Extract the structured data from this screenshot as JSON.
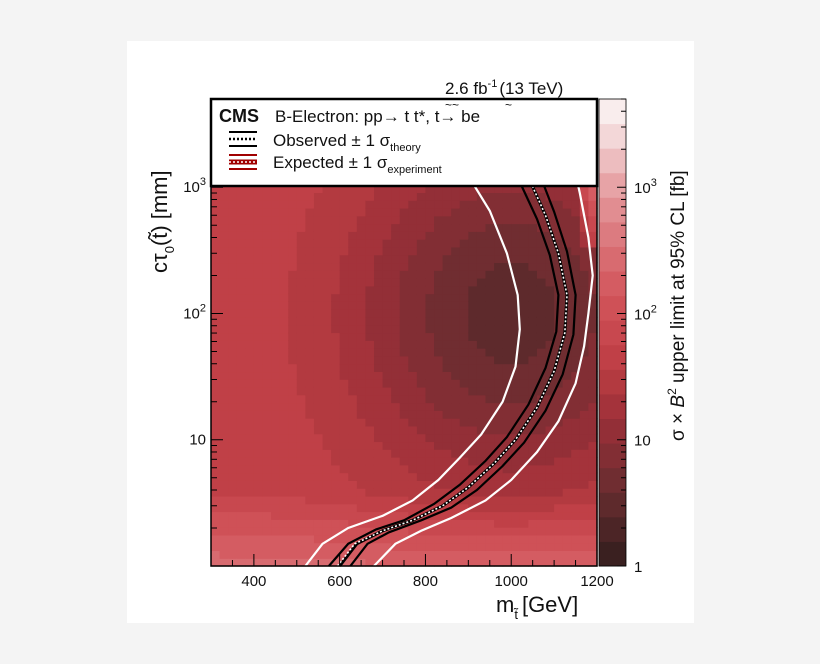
{
  "chart_data": {
    "type": "heatmap",
    "header": "2.6 fb-1 (13 TeV)",
    "lumi_value": "2.6 fb",
    "lumi_sup": "-1",
    "lumi_energy": "(13 TeV)",
    "cms": "CMS",
    "process": "B-Electron: pp→ t̃ t̃*, t̃→ be",
    "process_pre": "B-Electron: pp→ ",
    "process_mid": "t t*, ",
    "process_post": "t→ be",
    "legend": [
      {
        "label": "Observed ± 1 σ",
        "sub": "theory",
        "color": "#000000",
        "band_color": "#ffffff"
      },
      {
        "label": "Expected ± 1 σ",
        "sub": "experiment",
        "color": "#a00000",
        "band_color": "#ffffff"
      }
    ],
    "xlabel": "m",
    "xlabel_sub": "t̃",
    "xlabel_unit": "[GeV]",
    "ylabel_pre": "cτ",
    "ylabel_sub": "0",
    "ylabel_arg": "(t̃)",
    "ylabel_unit": "[mm]",
    "zlabel": "σ × B² upper limit at 95% CL [fb]",
    "zlabel_pre": "σ × ",
    "zlabel_B": "B",
    "zlabel_sup": "2",
    "zlabel_post": " upper limit at 95% CL [fb]",
    "xlim": [
      300,
      1200
    ],
    "ylim": [
      1,
      5000
    ],
    "zlim": [
      1,
      5000
    ],
    "y_log": true,
    "z_log": true,
    "x_ticks": [
      {
        "value": 400,
        "label": "400"
      },
      {
        "value": 600,
        "label": "600"
      },
      {
        "value": 800,
        "label": "800"
      },
      {
        "value": 1000,
        "label": "1000"
      },
      {
        "value": 1200,
        "label": "1200"
      }
    ],
    "y_ticks": [
      {
        "value": 10,
        "label": "10"
      },
      {
        "value": 100,
        "label": "10",
        "sup": "2"
      },
      {
        "value": 1000,
        "label": "10",
        "sup": "3"
      }
    ],
    "z_ticks": [
      {
        "value": 1,
        "label": "1"
      },
      {
        "value": 10,
        "label": "10"
      },
      {
        "value": 100,
        "label": "10",
        "sup": "2"
      },
      {
        "value": 1000,
        "label": "10",
        "sup": "3"
      }
    ],
    "z_colors": [
      "#3a2020",
      "#4c2526",
      "#5e2a2c",
      "#702d31",
      "#822e34",
      "#932f37",
      "#a4333b",
      "#b33a40",
      "#c04047",
      "#c8484f",
      "#cf5157",
      "#d45c62",
      "#d86b70",
      "#dc7b80",
      "#e18d91",
      "#e7a3a6",
      "#edbdbf",
      "#f3d7d8",
      "#f9eded"
    ],
    "observed": {
      "central": [
        [
          600,
          1
        ],
        [
          640,
          1.5
        ],
        [
          700,
          1.9
        ],
        [
          770,
          2.3
        ],
        [
          840,
          3.0
        ],
        [
          900,
          4.2
        ],
        [
          960,
          6.5
        ],
        [
          1010,
          10
        ],
        [
          1060,
          18
        ],
        [
          1100,
          35
        ],
        [
          1125,
          70
        ],
        [
          1130,
          140
        ],
        [
          1110,
          300
        ],
        [
          1080,
          600
        ],
        [
          1040,
          1200
        ],
        [
          1010,
          1800
        ]
      ],
      "minus": [
        [
          575,
          1
        ],
        [
          620,
          1.5
        ],
        [
          685,
          1.95
        ],
        [
          750,
          2.3
        ],
        [
          820,
          3.1
        ],
        [
          880,
          4.4
        ],
        [
          940,
          6.8
        ],
        [
          990,
          10.5
        ],
        [
          1040,
          19
        ],
        [
          1080,
          37
        ],
        [
          1105,
          72
        ],
        [
          1110,
          140
        ],
        [
          1090,
          290
        ],
        [
          1060,
          560
        ],
        [
          1020,
          1100
        ],
        [
          990,
          1800
        ]
      ],
      "plus": [
        [
          625,
          1
        ],
        [
          665,
          1.5
        ],
        [
          715,
          1.85
        ],
        [
          790,
          2.3
        ],
        [
          860,
          2.9
        ],
        [
          920,
          4.0
        ],
        [
          980,
          6.2
        ],
        [
          1030,
          9.5
        ],
        [
          1080,
          17
        ],
        [
          1120,
          33
        ],
        [
          1145,
          68
        ],
        [
          1150,
          140
        ],
        [
          1130,
          310
        ],
        [
          1100,
          640
        ],
        [
          1065,
          1300
        ],
        [
          1035,
          1800
        ]
      ]
    },
    "expected": {
      "central": [
        [
          595,
          1
        ],
        [
          635,
          1.5
        ],
        [
          700,
          1.9
        ],
        [
          770,
          2.3
        ],
        [
          840,
          3.0
        ],
        [
          900,
          4.2
        ],
        [
          960,
          6.5
        ],
        [
          1010,
          10
        ],
        [
          1060,
          18
        ],
        [
          1100,
          35
        ],
        [
          1125,
          70
        ],
        [
          1130,
          140
        ],
        [
          1110,
          300
        ],
        [
          1080,
          600
        ],
        [
          1040,
          1200
        ],
        [
          1005,
          1800
        ]
      ],
      "minus": [
        [
          520,
          1
        ],
        [
          560,
          1.5
        ],
        [
          620,
          2.0
        ],
        [
          700,
          2.5
        ],
        [
          770,
          3.3
        ],
        [
          830,
          4.8
        ],
        [
          880,
          7.2
        ],
        [
          930,
          11
        ],
        [
          980,
          20
        ],
        [
          1010,
          38
        ],
        [
          1020,
          75
        ],
        [
          1015,
          140
        ],
        [
          990,
          300
        ],
        [
          950,
          650
        ],
        [
          890,
          1400
        ],
        [
          840,
          1800
        ]
      ],
      "plus": [
        [
          680,
          1
        ],
        [
          730,
          1.5
        ],
        [
          790,
          1.9
        ],
        [
          860,
          2.4
        ],
        [
          940,
          3.3
        ],
        [
          1000,
          4.8
        ],
        [
          1060,
          8
        ],
        [
          1110,
          14
        ],
        [
          1150,
          28
        ],
        [
          1170,
          55
        ],
        [
          1180,
          100
        ],
        [
          1190,
          200
        ],
        [
          1180,
          400
        ],
        [
          1160,
          900
        ],
        [
          1140,
          1800
        ]
      ]
    }
  }
}
